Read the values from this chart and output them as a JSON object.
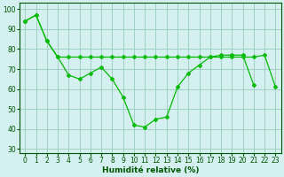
{
  "xlabel": "Humidité relative (%)",
  "background_color": "#d5f0f0",
  "grid_color": "#99ccbb",
  "line_color": "#00bb00",
  "marker_color": "#00bb00",
  "ylim": [
    28,
    103
  ],
  "xlim": [
    -0.5,
    23.5
  ],
  "yticks": [
    30,
    40,
    50,
    60,
    70,
    80,
    90,
    100
  ],
  "xticks": [
    0,
    1,
    2,
    3,
    4,
    5,
    6,
    7,
    8,
    9,
    10,
    11,
    12,
    13,
    14,
    15,
    16,
    17,
    18,
    19,
    20,
    21,
    22,
    23
  ],
  "series1_x": [
    0,
    1,
    2,
    3,
    4,
    5,
    6,
    7,
    8,
    9,
    10,
    11,
    12,
    13,
    14,
    15,
    16,
    17,
    18,
    19,
    20,
    21,
    22,
    23
  ],
  "series1_y": [
    94,
    97,
    84,
    76,
    67,
    65,
    68,
    71,
    65,
    56,
    42,
    41,
    45,
    46,
    61,
    68,
    72,
    76,
    77,
    77,
    77,
    62,
    null,
    null
  ],
  "series2_x": [
    0,
    1,
    2,
    3,
    4,
    5,
    6,
    7,
    8,
    9,
    10,
    11,
    12,
    13,
    14,
    15,
    16,
    17,
    18,
    19,
    20,
    21,
    22,
    23
  ],
  "series2_y": [
    94,
    97,
    84,
    76,
    76,
    76,
    76,
    76,
    76,
    76,
    76,
    76,
    76,
    76,
    76,
    76,
    76,
    76,
    76,
    76,
    76,
    76,
    77,
    61
  ],
  "xlabel_fontsize": 6.5,
  "tick_fontsize": 5.5,
  "linewidth": 0.9,
  "markersize": 2.0
}
